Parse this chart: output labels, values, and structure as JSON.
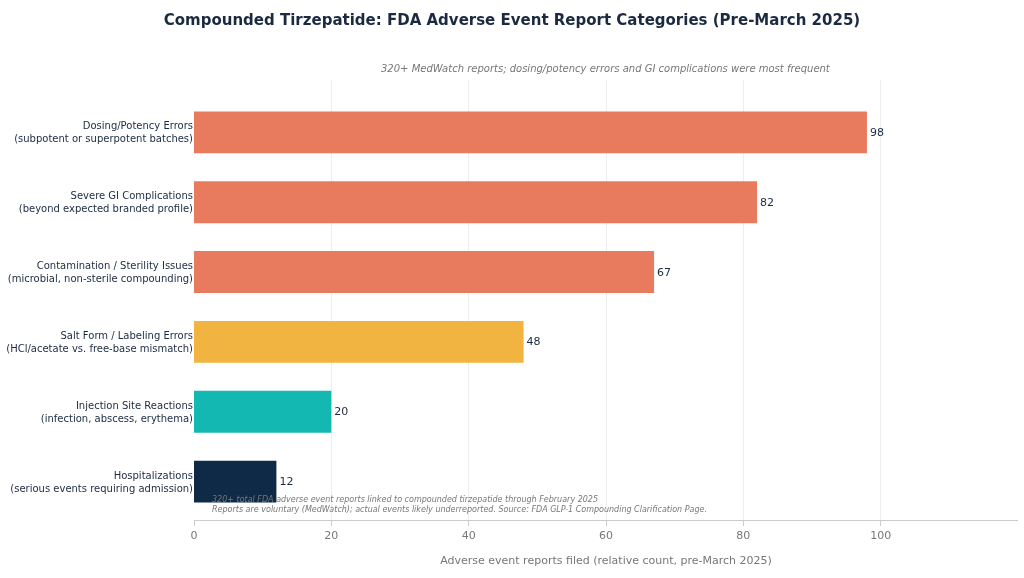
{
  "chart_data": {
    "type": "bar",
    "orientation": "horizontal",
    "title": "Compounded Tirzepatide: FDA Adverse Event Report Categories (Pre-March 2025)",
    "subtitle": "320+ MedWatch reports; dosing/potency errors and GI complications were most frequent",
    "xlabel": "Adverse event reports filed (relative count, pre-March 2025)",
    "categories": [
      "Dosing/Potency Errors\n(subpotent or superpotent batches)",
      "Severe GI Complications\n(beyond expected branded profile)",
      "Contamination / Sterility Issues\n(microbial, non-sterile compounding)",
      "Salt Form / Labeling Errors\n(HCl/acetate vs. free-base mismatch)",
      "Injection Site Reactions\n(infection, abscess, erythema)",
      "Hospitalizations\n(serious events requiring admission)"
    ],
    "values": [
      98,
      82,
      67,
      48,
      20,
      12
    ],
    "colors": [
      "#e87b5e",
      "#e87b5e",
      "#e87b5e",
      "#f2b441",
      "#14b8b3",
      "#0f2a47"
    ],
    "xlim": [
      0,
      120
    ],
    "xticks": [
      0,
      20,
      40,
      60,
      80,
      100
    ],
    "grid": "x",
    "data_labels": true,
    "annotations": [
      "320+ total FDA adverse event reports linked to compounded tirzepatide through February 2025\nReports are voluntary (MedWatch); actual events likely underreported. Source: FDA GLP-1 Compounding Clarification Page."
    ]
  }
}
